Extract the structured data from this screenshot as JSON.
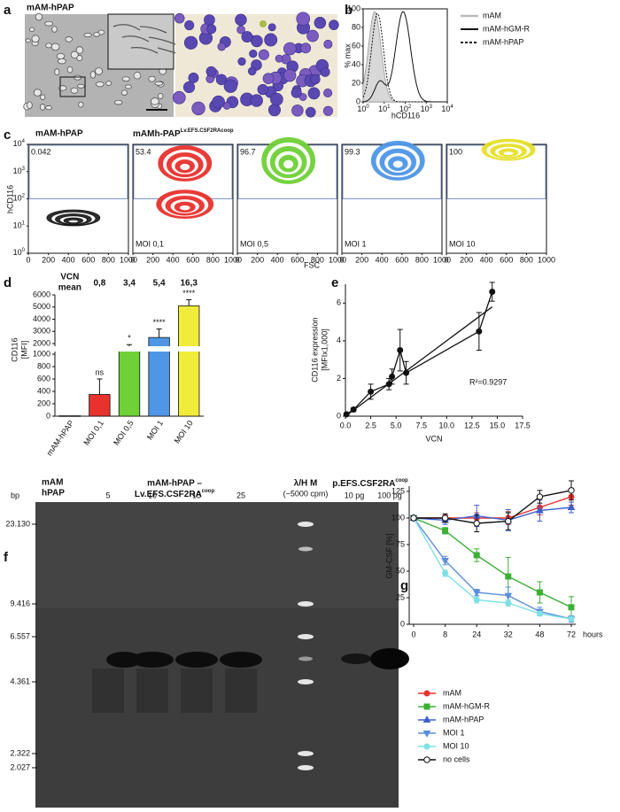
{
  "a": {
    "label": "a",
    "title": "mAM-hPAP"
  },
  "b": {
    "label": "b",
    "ylabel": "% max",
    "xlabel": "hCD116",
    "yticks": [
      "0",
      "20",
      "40",
      "60",
      "80",
      "100"
    ],
    "xticks": [
      {
        "base": "10",
        "exp": "0"
      },
      {
        "base": "10",
        "exp": "1"
      },
      {
        "base": "10",
        "exp": "2"
      },
      {
        "base": "10",
        "exp": "3"
      },
      {
        "base": "10",
        "exp": "4"
      }
    ],
    "legend": [
      "mAM",
      "mAM-hGM-R",
      "mAM-hPAP"
    ]
  },
  "c": {
    "label": "c",
    "ylabel": "hCD116",
    "xlabel": "FSC",
    "title_left": "mAM-hPAP",
    "title_right": {
      "text": "mAMh-PAP",
      "sup": "Lv.EFS.CSF2RAcoop"
    },
    "yticks": [
      {
        "base": "10",
        "exp": "0"
      },
      {
        "base": "10",
        "exp": "1"
      },
      {
        "base": "10",
        "exp": "2"
      },
      {
        "base": "10",
        "exp": "3"
      },
      {
        "base": "10",
        "exp": "4"
      }
    ],
    "xticks": [
      "0",
      "200",
      "400",
      "600",
      "800",
      "1000"
    ],
    "plots": [
      {
        "percent": "0.042",
        "color": "#222222"
      },
      {
        "percent": "53.4",
        "moi": "MOI 0,1",
        "color": "#e8322e"
      },
      {
        "percent": "96.7",
        "moi": "MOI 0,5",
        "color": "#6fd037"
      },
      {
        "percent": "99.3",
        "moi": "MOI 1",
        "color": "#4f97e6"
      },
      {
        "percent": "100",
        "moi": "MOI 10",
        "color": "#e6e02a"
      }
    ]
  },
  "f": {
    "label": "f",
    "bp": "bp",
    "ctrl": [
      "mAM",
      "hPAP"
    ],
    "group": "mAM-hPAP –",
    "group_sub": {
      "text": "Lv.EFS.CSF2RA",
      "sup": "coop"
    },
    "lanes": [
      "5",
      "10",
      "15",
      "25"
    ],
    "marker": "λ/H M",
    "marker_sub": "(~5000 cpm)",
    "plasmid": {
      "text": "p.EFS.CSF2RA",
      "sup": "coop"
    },
    "plasmid_lanes": [
      "10 pg",
      "100 pg"
    ],
    "sizes": [
      "23.130",
      "9.416",
      "6.557",
      "4.361",
      "2.322",
      "2.027"
    ]
  },
  "chart_data": [
    {
      "type": "bar",
      "label": "d",
      "ylabel": "CD116",
      "ylabel_unit": "[MFI]",
      "categories": [
        "mAM-hPAP",
        "MOI 0,1",
        "MOI 0,5",
        "MOI 1",
        "MOI 10"
      ],
      "values": [
        10,
        350,
        1600,
        2500,
        5100
      ],
      "errors": [
        null,
        250,
        300,
        700,
        500
      ],
      "colors": [
        "#ffffff",
        "#e8322e",
        "#6fd037",
        "#4f97e6",
        "#f0ec3a"
      ],
      "ylim": [
        0,
        6000
      ],
      "ybreak": [
        1000,
        2000
      ],
      "yticks": [
        0,
        200,
        400,
        600,
        800,
        1000,
        2000,
        3000,
        4000,
        5000,
        6000
      ],
      "significance": [
        null,
        "ns",
        "*",
        "****",
        "****"
      ],
      "vcn_title": [
        "VCN",
        "mean"
      ],
      "vcn": [
        null,
        "0,8",
        "3,4",
        "5,4",
        "16,3"
      ]
    },
    {
      "type": "line",
      "label": "e",
      "ylabel": "CD116 expression",
      "ylabel_unit": "[MFIx1,000]",
      "xlabel": "VCN",
      "x": [
        0.1,
        0.8,
        2.5,
        4.3,
        4.6,
        5.4,
        6,
        13.2,
        14.5
      ],
      "values": [
        0.1,
        0.35,
        1.3,
        1.7,
        2.1,
        3.5,
        2.3,
        4.5,
        6.6
      ],
      "errors": [
        0.05,
        0.1,
        0.4,
        0.3,
        0.4,
        1.1,
        0.6,
        1.0,
        0.5
      ],
      "fit": {
        "x": [
          0,
          14.5
        ],
        "values": [
          0,
          5.8
        ]
      },
      "annotation": "R²=0.9297",
      "color": "#111111",
      "xlim": [
        0,
        17.5
      ],
      "xticks": [
        {
          "value": 0,
          "label": "0.0"
        },
        2.5,
        {
          "value": 5,
          "label": "5.0"
        },
        7.5,
        {
          "value": 10,
          "label": "10.0"
        },
        12.5,
        {
          "value": 15,
          "label": "15.0"
        },
        17.5
      ],
      "ylim": [
        0,
        7
      ],
      "yticks": [
        0,
        2,
        4,
        6
      ]
    },
    {
      "type": "line",
      "label": "g",
      "ylabel": "GM-CSF [%]",
      "xlabel": "hours",
      "categories": [
        "0",
        "8",
        "24",
        "32",
        "48",
        "72"
      ],
      "ylim": [
        0,
        130
      ],
      "yticks": [
        0,
        25,
        50,
        75,
        100,
        125
      ],
      "series": [
        {
          "name": "mAM",
          "color": "#e8322e",
          "marker": "circle",
          "values": [
            100,
            100,
            100,
            100,
            110,
            120
          ],
          "errors": [
            2,
            3,
            5,
            6,
            7,
            8
          ]
        },
        {
          "name": "mAM-hGM-R",
          "color": "#3cb034",
          "marker": "square",
          "values": [
            100,
            88,
            65,
            45,
            30,
            16
          ],
          "errors": [
            2,
            3,
            6,
            18,
            10,
            10
          ]
        },
        {
          "name": "mAM-hPAP",
          "color": "#3f5fcf",
          "marker": "triangle",
          "values": [
            100,
            98,
            102,
            98,
            107,
            110
          ],
          "errors": [
            2,
            4,
            10,
            10,
            10,
            5
          ]
        },
        {
          "name": "MOI 1",
          "color": "#5b8fd8",
          "marker": "triangle-down",
          "values": [
            100,
            60,
            30,
            27,
            12,
            5
          ],
          "errors": [
            2,
            4,
            3,
            8,
            4,
            3
          ]
        },
        {
          "name": "MOI 10",
          "color": "#7de0e6",
          "marker": "circle",
          "values": [
            100,
            48,
            23,
            20,
            10,
            5
          ],
          "errors": [
            2,
            3,
            3,
            3,
            2,
            2
          ]
        },
        {
          "name": "no cells",
          "color": "#111111",
          "marker": "open-circle",
          "values": [
            100,
            100,
            95,
            97,
            120,
            126
          ],
          "errors": [
            2,
            4,
            8,
            8,
            6,
            9
          ]
        }
      ]
    }
  ]
}
